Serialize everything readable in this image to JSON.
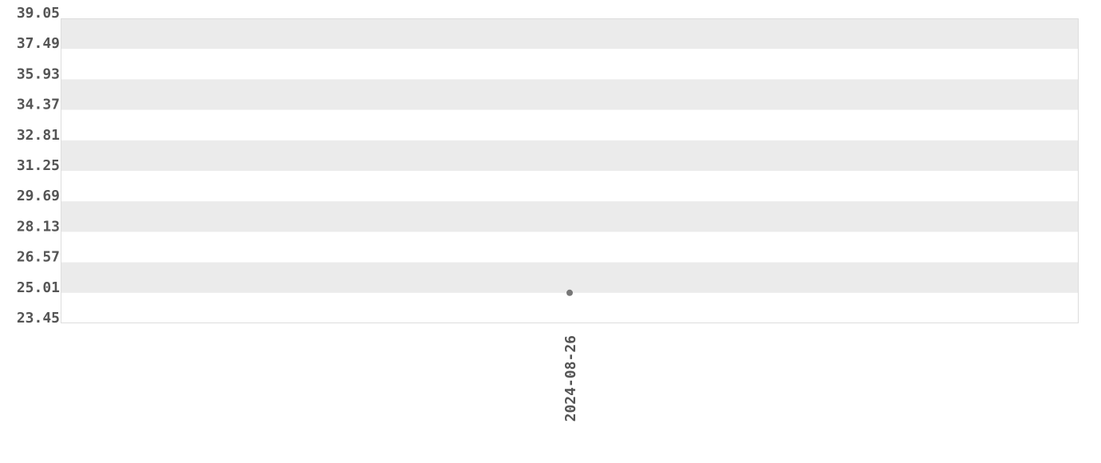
{
  "chart_data": {
    "type": "scatter",
    "title": "",
    "xlabel": "",
    "ylabel": "",
    "ylim": [
      23.45,
      39.05
    ],
    "yticks": [
      "23.45",
      "25.01",
      "26.57",
      "28.13",
      "29.69",
      "31.25",
      "32.81",
      "34.37",
      "35.93",
      "37.49",
      "39.05"
    ],
    "categories": [
      "2024-08-26"
    ],
    "values": [
      25.01
    ],
    "grid": "alternating horizontal bands",
    "colors": {
      "band": "#ebebeb",
      "point": "#777777",
      "text": "#555555",
      "border": "#dddddd"
    }
  }
}
